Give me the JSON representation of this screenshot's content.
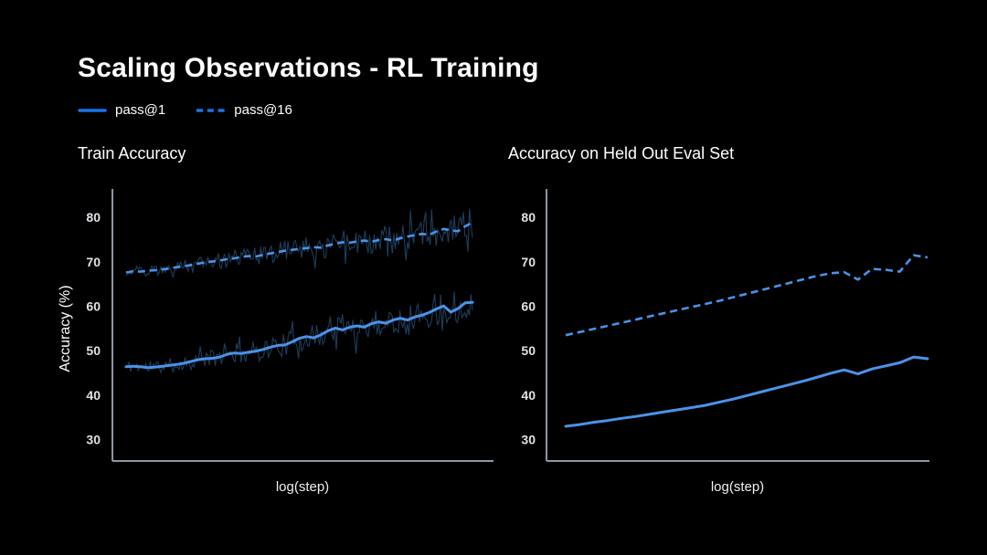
{
  "slide": {
    "title": "Scaling Observations - RL Training",
    "background": "#000000"
  },
  "legend": {
    "items": [
      {
        "label": "pass@1",
        "style": "solid"
      },
      {
        "label": "pass@16",
        "style": "dashed"
      }
    ]
  },
  "colors": {
    "background": "#000000",
    "title_text": "#ffffff",
    "legend_line": "#1973e8",
    "series_line": "#4a93e8",
    "raw_noise_line": "#20405f",
    "axis": "#8e96a2",
    "tick_text": "#dfe3e8"
  },
  "chart_data": [
    {
      "type": "line",
      "title": "Train Accuracy",
      "xlabel": "log(step)",
      "ylabel": "Accuracy (%)",
      "yticks": [
        30,
        40,
        50,
        60,
        70,
        80
      ],
      "ylim": [
        25.2,
        86.4
      ],
      "x_axis_note": "unlabeled log-scale step axis",
      "legend_position": "top-left of slide",
      "grid": false,
      "series": [
        {
          "name": "pass@1",
          "style": "solid",
          "smoothed": [
            46.4,
            46.5,
            46.4,
            46.2,
            46.3,
            46.5,
            46.7,
            46.9,
            47.2,
            47.6,
            48.0,
            48.2,
            48.3,
            48.6,
            49.2,
            49.5,
            49.4,
            49.7,
            49.9,
            50.3,
            50.8,
            51.2,
            51.3,
            52.0,
            52.8,
            53.2,
            52.9,
            53.6,
            54.5,
            55.1,
            54.7,
            55.3,
            55.6,
            55.3,
            56.1,
            56.5,
            56.2,
            56.9,
            57.3,
            56.9,
            57.6,
            58.0,
            58.6,
            59.4,
            60.1,
            58.7,
            59.5,
            60.8,
            60.9
          ],
          "raw_noise": {
            "amplitude": 2.6,
            "seed": 11,
            "points": 230
          }
        },
        {
          "name": "pass@16",
          "style": "dashed",
          "smoothed": [
            67.6,
            67.9,
            67.8,
            68.0,
            68.1,
            68.3,
            68.5,
            68.8,
            69.0,
            69.3,
            69.6,
            69.9,
            70.1,
            70.3,
            70.6,
            70.8,
            71.1,
            71.3,
            71.2,
            71.6,
            71.9,
            72.2,
            72.5,
            72.7,
            72.9,
            73.1,
            73.3,
            73.2,
            73.7,
            74.1,
            74.4,
            74.3,
            74.6,
            74.8,
            74.5,
            74.9,
            75.1,
            74.8,
            75.3,
            75.7,
            76.0,
            76.3,
            76.1,
            76.8,
            77.4,
            77.1,
            76.9,
            78.0,
            78.9
          ],
          "raw_noise": {
            "amplitude": 2.3,
            "seed": 29,
            "points": 230
          }
        }
      ]
    },
    {
      "type": "line",
      "title": "Accuracy on Held Out Eval Set",
      "xlabel": "log(step)",
      "ylabel": "",
      "yticks": [
        30,
        40,
        50,
        60,
        70,
        80
      ],
      "ylim": [
        25.2,
        86.4
      ],
      "x_axis_note": "unlabeled log-scale step axis",
      "grid": false,
      "series": [
        {
          "name": "pass@1",
          "style": "solid",
          "smoothed": [
            33.0,
            33.4,
            33.9,
            34.3,
            34.8,
            35.2,
            35.7,
            36.2,
            36.7,
            37.2,
            37.7,
            38.4,
            39.1,
            39.9,
            40.7,
            41.5,
            42.3,
            43.1,
            44.0,
            44.9,
            45.7,
            44.8,
            45.9,
            46.6,
            47.3,
            48.6,
            48.2
          ]
        },
        {
          "name": "pass@16",
          "style": "dashed",
          "smoothed": [
            53.5,
            54.2,
            54.9,
            55.6,
            56.3,
            57.0,
            57.7,
            58.4,
            59.1,
            59.8,
            60.5,
            61.2,
            62.0,
            62.8,
            63.6,
            64.4,
            65.2,
            66.0,
            66.8,
            67.4,
            67.7,
            66.0,
            68.4,
            68.2,
            67.8,
            71.5,
            71.0
          ]
        }
      ]
    }
  ]
}
